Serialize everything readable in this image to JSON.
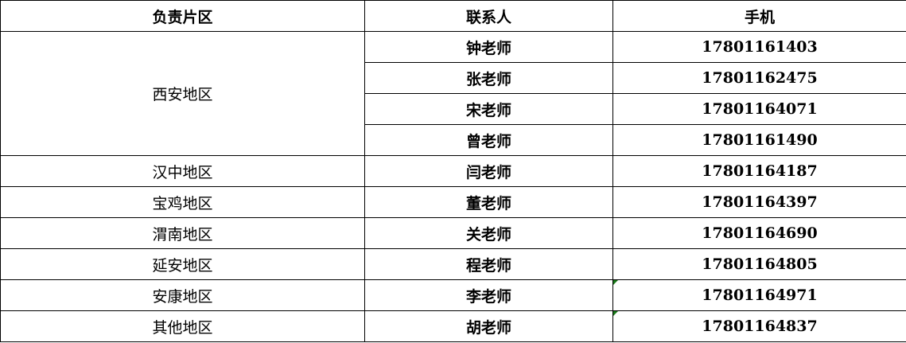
{
  "table": {
    "headers": [
      "负责片区",
      "联系人",
      "手机"
    ],
    "groups": [
      {
        "region": "西安地区",
        "contacts": [
          {
            "name": "钟老师",
            "phone": "17801161403"
          },
          {
            "name": "张老师",
            "phone": "17801162475"
          },
          {
            "name": "宋老师",
            "phone": "17801164071"
          },
          {
            "name": "曾老师",
            "phone": "17801161490"
          }
        ]
      },
      {
        "region": "汉中地区",
        "contacts": [
          {
            "name": "闫老师",
            "phone": "17801164187"
          }
        ]
      },
      {
        "region": "宝鸡地区",
        "contacts": [
          {
            "name": "董老师",
            "phone": "17801164397"
          }
        ]
      },
      {
        "region": "渭南地区",
        "contacts": [
          {
            "name": "关老师",
            "phone": "17801164690"
          }
        ]
      },
      {
        "region": "延安地区",
        "contacts": [
          {
            "name": "程老师",
            "phone": "17801164805"
          }
        ]
      },
      {
        "region": "安康地区",
        "contacts": [
          {
            "name": "李老师",
            "phone": "17801164971",
            "text_number_flag": true
          }
        ]
      },
      {
        "region": "其他地区",
        "contacts": [
          {
            "name": "胡老师",
            "phone": "17801164837",
            "text_number_flag": true
          }
        ]
      }
    ],
    "flag_color": "#1a7a1a"
  }
}
